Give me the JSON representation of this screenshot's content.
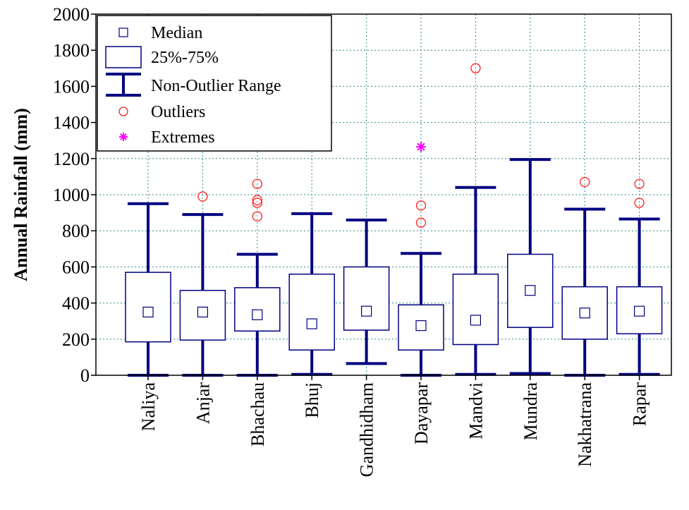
{
  "chart_data": {
    "type": "boxplot",
    "ylabel": "Annual Rainfall (mm)",
    "ylim": [
      0,
      2000
    ],
    "yticks": [
      0,
      200,
      400,
      600,
      800,
      1000,
      1200,
      1400,
      1600,
      1800,
      2000
    ],
    "grid": true,
    "legend_position": "top-left",
    "colors": {
      "box": "#000080",
      "outlier": "#ff2020",
      "extreme": "#ff00ff",
      "grid": "#2e8b8b"
    },
    "legend": [
      {
        "key": "median",
        "label": "Median"
      },
      {
        "key": "iqr",
        "label": "25%-75%"
      },
      {
        "key": "range",
        "label": "Non-Outlier Range"
      },
      {
        "key": "outliers",
        "label": "Outliers"
      },
      {
        "key": "extremes",
        "label": "Extremes"
      }
    ],
    "categories": [
      "Naliya",
      "Anjar",
      "Bhachau",
      "Bhuj",
      "Gandhidham",
      "Dayapar",
      "Mandvi",
      "Mundra",
      "Nakhatrana",
      "Rapar"
    ],
    "boxes": [
      {
        "min": 0,
        "q1": 185,
        "median": 350,
        "q3": 570,
        "max": 950,
        "outliers": [],
        "extremes": []
      },
      {
        "min": 0,
        "q1": 195,
        "median": 350,
        "q3": 470,
        "max": 890,
        "outliers": [
          990
        ],
        "extremes": []
      },
      {
        "min": 0,
        "q1": 245,
        "median": 335,
        "q3": 485,
        "max": 670,
        "outliers": [
          880,
          955,
          970,
          1060
        ],
        "extremes": []
      },
      {
        "min": 5,
        "q1": 140,
        "median": 285,
        "q3": 560,
        "max": 895,
        "outliers": [],
        "extremes": []
      },
      {
        "min": 65,
        "q1": 250,
        "median": 355,
        "q3": 600,
        "max": 860,
        "outliers": [],
        "extremes": []
      },
      {
        "min": 0,
        "q1": 140,
        "median": 275,
        "q3": 390,
        "max": 675,
        "outliers": [
          845,
          940
        ],
        "extremes": [
          1265
        ]
      },
      {
        "min": 5,
        "q1": 170,
        "median": 305,
        "q3": 560,
        "max": 1040,
        "outliers": [
          1700
        ],
        "extremes": []
      },
      {
        "min": 10,
        "q1": 265,
        "median": 470,
        "q3": 670,
        "max": 1195,
        "outliers": [],
        "extremes": []
      },
      {
        "min": 0,
        "q1": 200,
        "median": 345,
        "q3": 490,
        "max": 920,
        "outliers": [
          1070
        ],
        "extremes": []
      },
      {
        "min": 5,
        "q1": 230,
        "median": 355,
        "q3": 490,
        "max": 865,
        "outliers": [
          955,
          1060
        ],
        "extremes": []
      }
    ]
  }
}
